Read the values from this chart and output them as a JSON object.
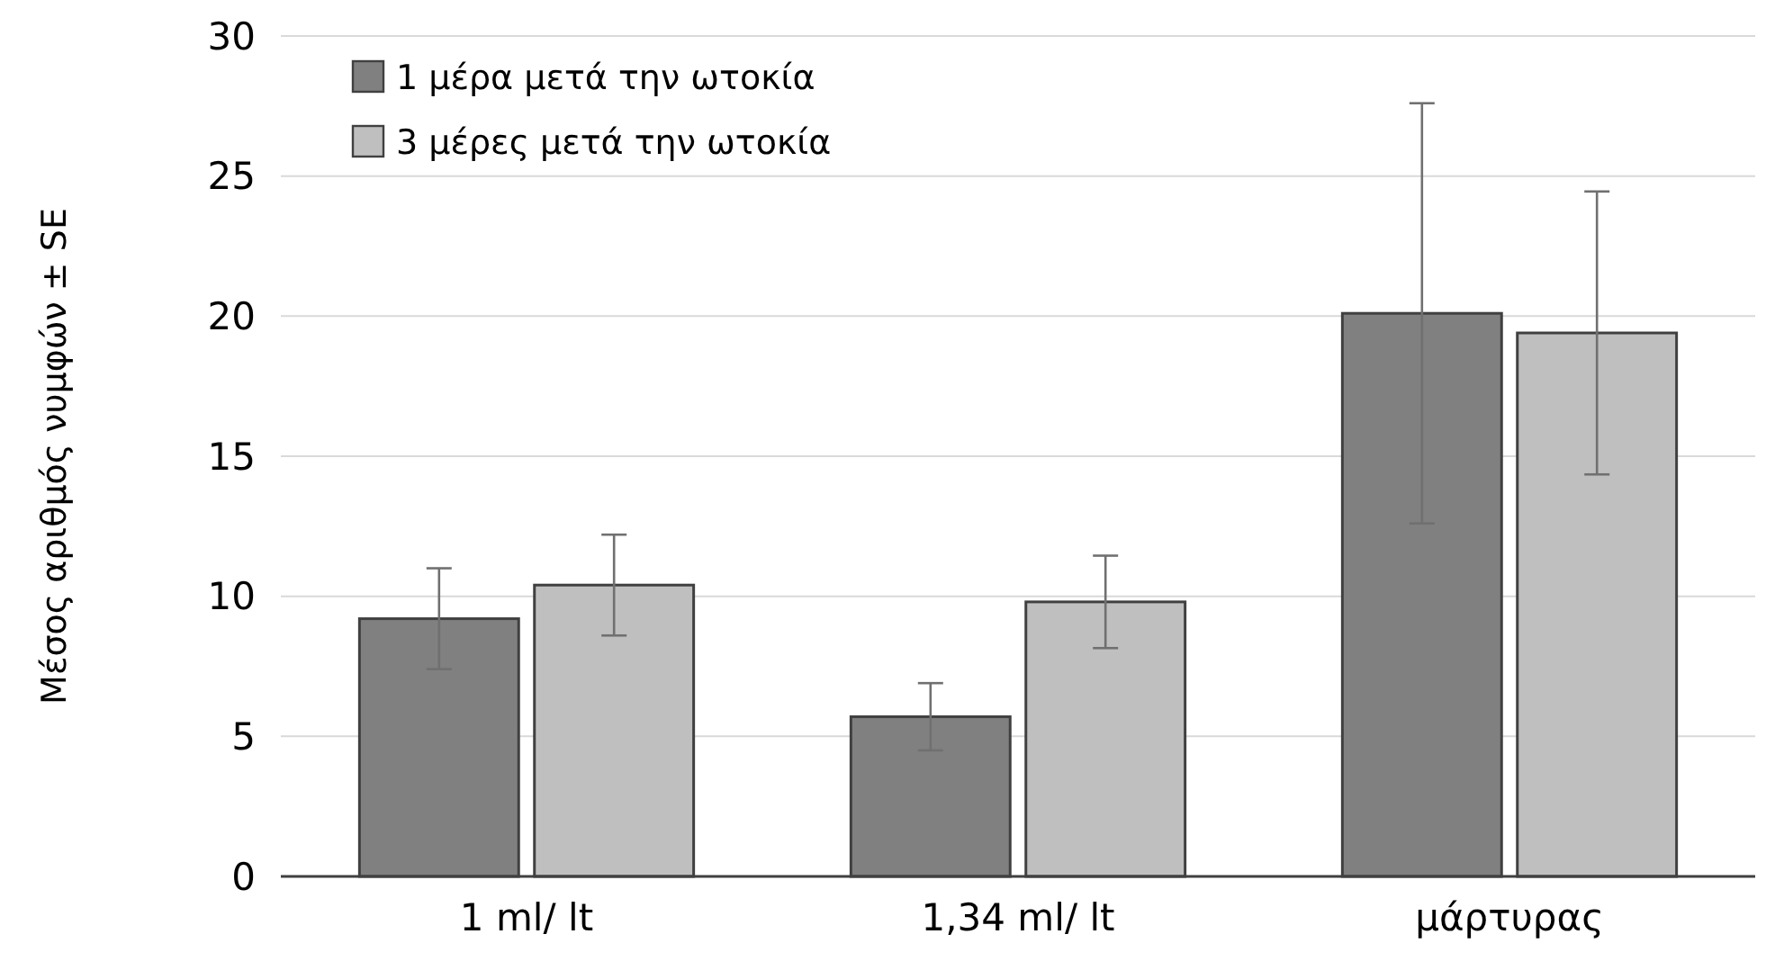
{
  "chart_data": {
    "type": "bar",
    "ylabel": "Μέσος αριθμός νυμφών ± SE",
    "categories": [
      "1 ml/ lt",
      "1,34 ml/ lt",
      "μάρτυρας"
    ],
    "series": [
      {
        "name": "1 μέρα μετά την ωτοκία",
        "color": "#808080",
        "values": [
          9.2,
          5.7,
          20.1
        ],
        "errors": [
          1.8,
          1.2,
          7.5
        ]
      },
      {
        "name": "3 μέρες μετά την ωτοκία",
        "color": "#bfbfbf",
        "values": [
          10.4,
          9.8,
          19.4
        ],
        "errors": [
          1.8,
          1.65,
          5.05
        ]
      }
    ],
    "ylim": [
      0,
      30
    ],
    "yticks": [
      0,
      5,
      10,
      15,
      20,
      25,
      30
    ],
    "grid": "y",
    "legend": "top left"
  }
}
